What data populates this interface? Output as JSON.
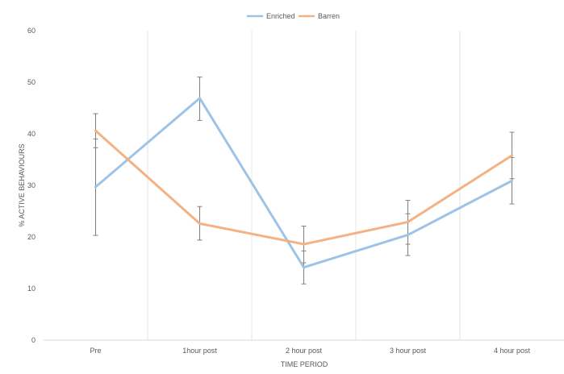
{
  "chart_data": {
    "type": "line",
    "title": "",
    "xlabel": "TIME PERIOD",
    "ylabel": "% ACTIVE BEHAVIOURS",
    "categories": [
      "Pre",
      "1hour post",
      "2 hour post",
      "3 hour post",
      "4 hour post"
    ],
    "ylim": [
      0,
      60
    ],
    "yticks": [
      0,
      10,
      20,
      30,
      40,
      50,
      60
    ],
    "grid": "vertical",
    "legend_position": "top",
    "series": [
      {
        "name": "Enriched",
        "color": "#9dc3e6",
        "values": [
          29.7,
          46.9,
          14.1,
          20.4,
          30.9
        ],
        "error_low": [
          20.3,
          42.6,
          10.9,
          16.4,
          26.4
        ],
        "error_high": [
          39.0,
          51.0,
          17.3,
          24.5,
          35.4
        ]
      },
      {
        "name": "Barren",
        "color": "#f4b183",
        "values": [
          40.6,
          22.6,
          18.6,
          22.9,
          35.8
        ],
        "error_low": [
          37.3,
          19.4,
          15.0,
          18.6,
          31.3
        ],
        "error_high": [
          43.9,
          25.9,
          22.1,
          27.1,
          40.3
        ]
      }
    ]
  }
}
